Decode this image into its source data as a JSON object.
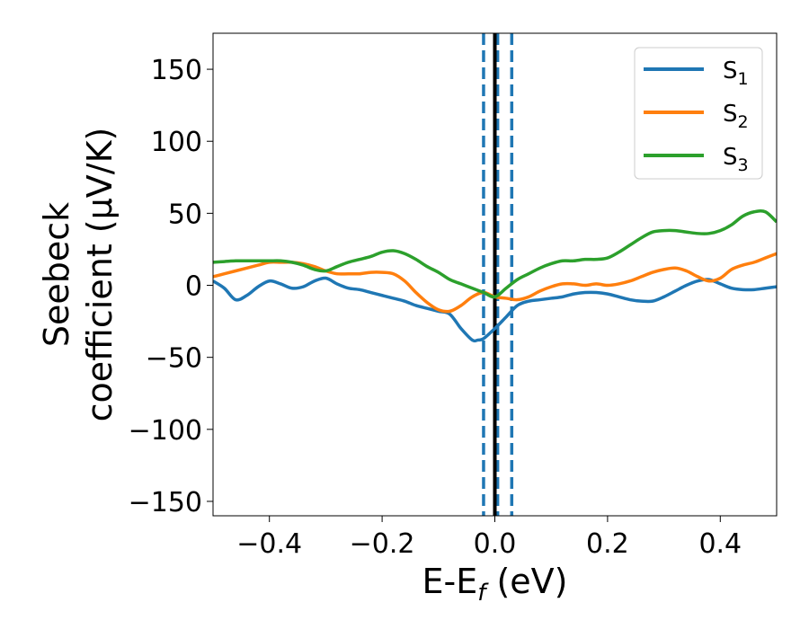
{
  "chart_data": {
    "type": "line",
    "title": "",
    "xlabel": {
      "main": "E-E",
      "sub": "f",
      "suffix": " (eV)"
    },
    "ylabel": {
      "line1": "Seebeck",
      "line2": "coefficient  (μV/K)"
    },
    "xlim": [
      -0.5,
      0.5
    ],
    "ylim": [
      -160,
      175
    ],
    "x_ticks": [
      -0.4,
      -0.2,
      0.0,
      0.2,
      0.4
    ],
    "x_tick_labels": [
      "−0.4",
      "−0.2",
      "0.0",
      "0.2",
      "0.4"
    ],
    "y_ticks": [
      -150,
      -100,
      -50,
      0,
      50,
      100,
      150
    ],
    "y_tick_labels": [
      "−150",
      "−100",
      "−50",
      "0",
      "50",
      "100",
      "150"
    ],
    "legend_position": "top-right",
    "vertical_lines": [
      {
        "x": 0.0,
        "color": "#000000",
        "style": "solid"
      },
      {
        "x": -0.02,
        "color": "#1f77b4",
        "style": "dashed"
      },
      {
        "x": 0.005,
        "color": "#1f77b4",
        "style": "dashed"
      },
      {
        "x": 0.03,
        "color": "#1f77b4",
        "style": "dashed"
      }
    ],
    "series": [
      {
        "name": "S",
        "sub": "1",
        "color": "#1f77b4",
        "x": [
          -0.5,
          -0.48,
          -0.46,
          -0.44,
          -0.42,
          -0.4,
          -0.38,
          -0.36,
          -0.34,
          -0.32,
          -0.3,
          -0.28,
          -0.26,
          -0.24,
          -0.22,
          -0.2,
          -0.18,
          -0.16,
          -0.14,
          -0.12,
          -0.1,
          -0.08,
          -0.06,
          -0.04,
          -0.03,
          -0.02,
          0.0,
          0.02,
          0.04,
          0.06,
          0.08,
          0.1,
          0.12,
          0.14,
          0.16,
          0.18,
          0.2,
          0.22,
          0.24,
          0.26,
          0.28,
          0.3,
          0.32,
          0.34,
          0.36,
          0.38,
          0.4,
          0.42,
          0.44,
          0.46,
          0.48,
          0.5
        ],
        "values": [
          3,
          -2,
          -10,
          -7,
          -1,
          3,
          1,
          -2,
          -1,
          3,
          5,
          1,
          -2,
          -3,
          -5,
          -7,
          -9,
          -11,
          -14,
          -16,
          -18,
          -20,
          -30,
          -38,
          -38,
          -37,
          -30,
          -22,
          -14,
          -11,
          -10,
          -9,
          -8,
          -6,
          -5,
          -5,
          -6,
          -8,
          -10,
          -11,
          -11,
          -8,
          -4,
          0,
          3,
          4,
          1,
          -2,
          -3,
          -3,
          -2,
          -1
        ]
      },
      {
        "name": "S",
        "sub": "2",
        "color": "#ff7f0e",
        "x": [
          -0.5,
          -0.48,
          -0.46,
          -0.44,
          -0.42,
          -0.4,
          -0.38,
          -0.36,
          -0.34,
          -0.32,
          -0.3,
          -0.28,
          -0.26,
          -0.24,
          -0.22,
          -0.2,
          -0.18,
          -0.16,
          -0.14,
          -0.12,
          -0.1,
          -0.08,
          -0.06,
          -0.04,
          -0.02,
          0.0,
          0.02,
          0.04,
          0.06,
          0.08,
          0.1,
          0.12,
          0.14,
          0.16,
          0.18,
          0.2,
          0.22,
          0.24,
          0.26,
          0.28,
          0.3,
          0.32,
          0.34,
          0.36,
          0.38,
          0.4,
          0.42,
          0.44,
          0.46,
          0.48,
          0.5
        ],
        "values": [
          6,
          8,
          10,
          12,
          14,
          16,
          16,
          16,
          15,
          13,
          10,
          8,
          8,
          8,
          9,
          9,
          8,
          3,
          -5,
          -12,
          -17,
          -18,
          -14,
          -8,
          -5,
          -8,
          -9,
          -10,
          -8,
          -4,
          -1,
          1,
          1,
          0,
          1,
          0,
          1,
          3,
          6,
          9,
          11,
          12,
          10,
          6,
          3,
          5,
          11,
          14,
          16,
          19,
          22
        ]
      },
      {
        "name": "S",
        "sub": "3",
        "color": "#2ca02c",
        "x": [
          -0.5,
          -0.48,
          -0.46,
          -0.44,
          -0.42,
          -0.4,
          -0.38,
          -0.36,
          -0.34,
          -0.32,
          -0.3,
          -0.28,
          -0.26,
          -0.24,
          -0.22,
          -0.2,
          -0.18,
          -0.16,
          -0.14,
          -0.12,
          -0.1,
          -0.08,
          -0.06,
          -0.04,
          -0.02,
          0.0,
          0.02,
          0.04,
          0.06,
          0.08,
          0.1,
          0.12,
          0.14,
          0.16,
          0.18,
          0.2,
          0.22,
          0.24,
          0.26,
          0.28,
          0.3,
          0.32,
          0.34,
          0.36,
          0.38,
          0.4,
          0.42,
          0.44,
          0.46,
          0.48,
          0.5
        ],
        "values": [
          16,
          16.5,
          17,
          17,
          17,
          17,
          17,
          16,
          14,
          11,
          10,
          13,
          16,
          18,
          20,
          23,
          24,
          22,
          18,
          13,
          9,
          4,
          1,
          -2,
          -5,
          -8,
          -2,
          4,
          8,
          12,
          15,
          17,
          17,
          18,
          18,
          19,
          23,
          28,
          33,
          37,
          38,
          38,
          37,
          36,
          36,
          38,
          42,
          48,
          51,
          51,
          44
        ]
      }
    ]
  }
}
